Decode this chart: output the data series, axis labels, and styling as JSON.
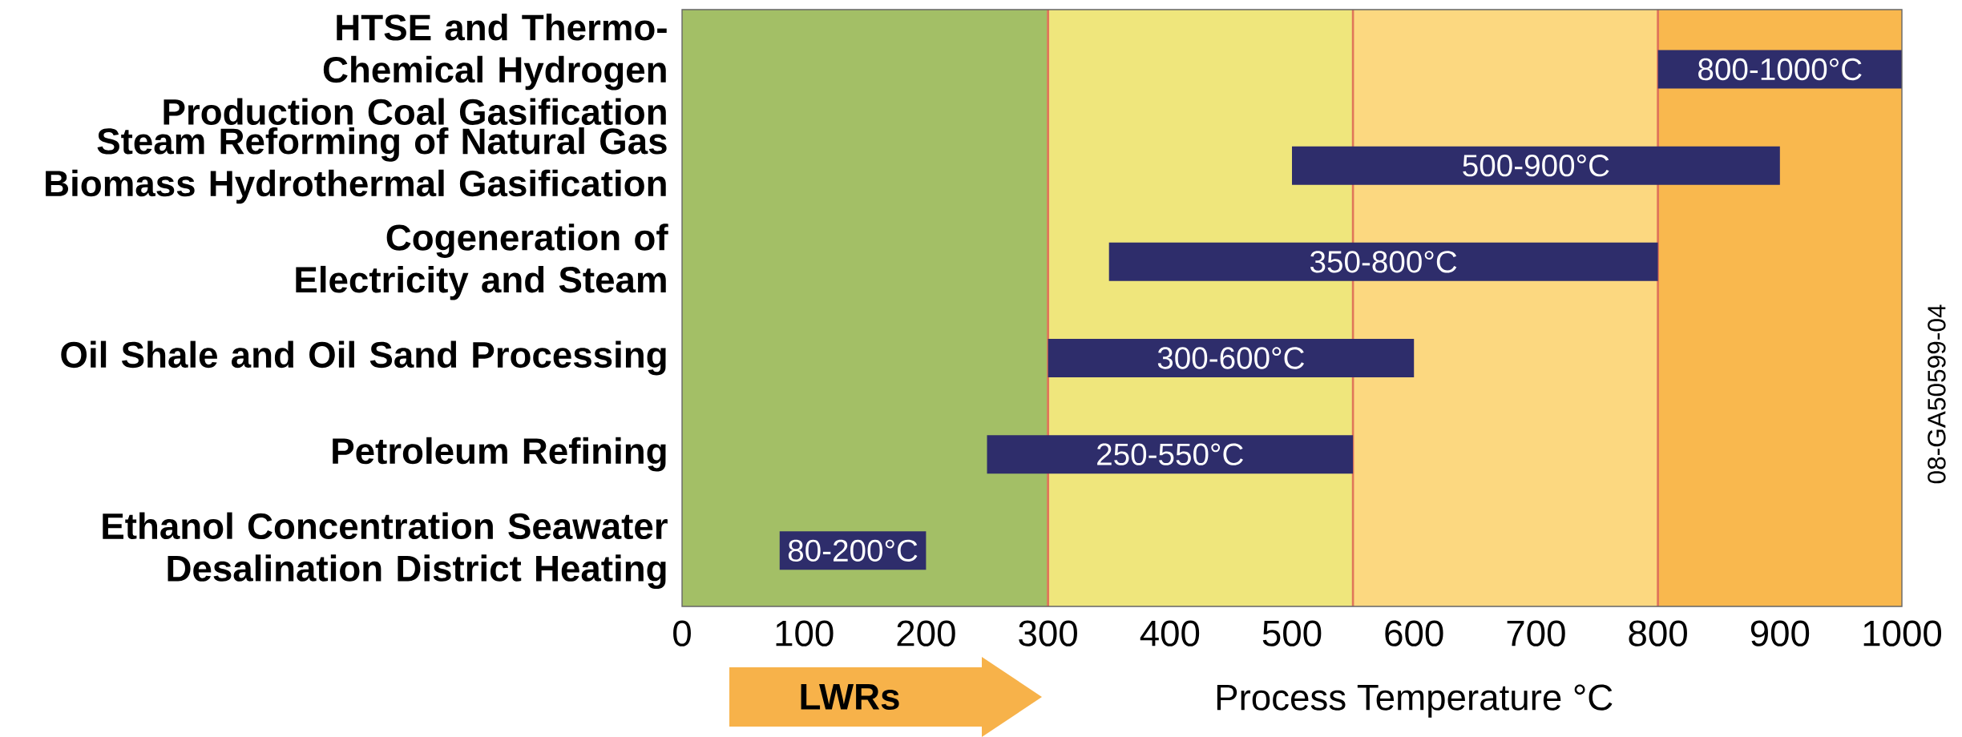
{
  "chart_data": {
    "type": "bar",
    "orientation": "horizontal",
    "xlabel": "Process Temperature °C",
    "categories": [
      "HTSE and Thermo-Chemical Hydrogen Production Coal Gasification",
      "Steam Reforming of Natural Gas Biomass Hydrothermal Gasification",
      "Cogeneration of Electricity and Steam",
      "Oil Shale and Oil Sand Processing",
      "Petroleum Refining",
      "Ethanol Concentration Seawater Desalination District Heating"
    ],
    "base": [
      800,
      500,
      350,
      300,
      250,
      80
    ],
    "values": [
      200,
      400,
      450,
      300,
      300,
      120
    ],
    "value_labels": [
      "800-1000°C",
      "500-900°C",
      "350-800°C",
      "300-600°C",
      "250-550°C",
      "80-200°C"
    ],
    "color": "#2e2d6b",
    "xlim": [
      0,
      1000
    ],
    "xticks": [
      0,
      100,
      200,
      300,
      400,
      500,
      600,
      700,
      800,
      900,
      1000
    ],
    "bands": [
      {
        "axis": "x",
        "from": 0,
        "to": 300,
        "color": "#a3bf66"
      },
      {
        "axis": "x",
        "from": 300,
        "to": 550,
        "color": "#efe67c"
      },
      {
        "axis": "x",
        "from": 550,
        "to": 800,
        "color": "#fcd880"
      },
      {
        "axis": "x",
        "from": 800,
        "to": 1000,
        "color": "#f9b84e"
      }
    ],
    "ref_lines": [
      {
        "axis": "x",
        "value": 300,
        "color": "#e0765a"
      },
      {
        "axis": "x",
        "value": 550,
        "color": "#e0765a"
      },
      {
        "axis": "x",
        "value": 800,
        "color": "#e0765a"
      }
    ],
    "annotations": [
      "LWRs",
      "08-GA50599-04"
    ]
  }
}
